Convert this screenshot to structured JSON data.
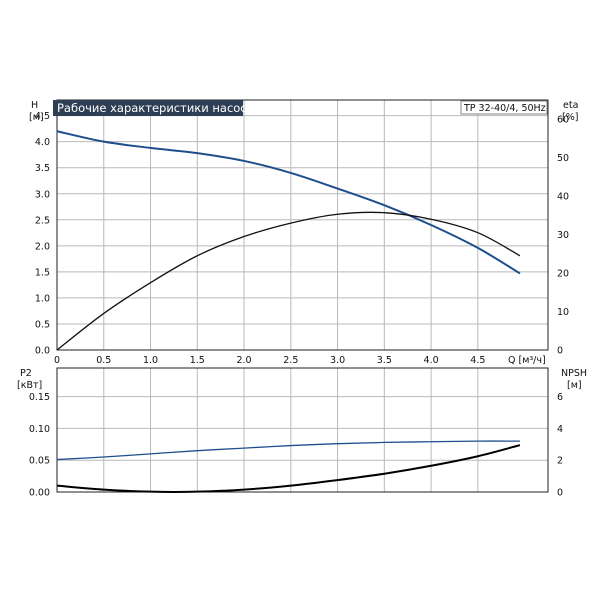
{
  "chart_data": [
    {
      "type": "line",
      "title": "Рабочие характеристики насоса",
      "model": "TP 32-40/4, 50Hz",
      "xlabel": "Q [м³/ч]",
      "xlim": [
        0,
        5.25
      ],
      "x_ticks": [
        "0",
        "0.5",
        "1.0",
        "1.5",
        "2.0",
        "2.5",
        "3.0",
        "3.5",
        "4.0",
        "4.5"
      ],
      "left_axis": {
        "label": "H",
        "unit": "[м]",
        "ylim": [
          0,
          4.8
        ],
        "ticks": [
          "0.0",
          "0.5",
          "1.0",
          "1.5",
          "2.0",
          "2.5",
          "3.0",
          "3.5",
          "4.0",
          "4.5"
        ]
      },
      "right_axis": {
        "label": "eta",
        "unit": "[%]",
        "ylim": [
          0,
          65
        ],
        "ticks": [
          "0",
          "10",
          "20",
          "30",
          "40",
          "50",
          "60"
        ]
      },
      "grid": true,
      "series": [
        {
          "color": "#1f4e8c",
          "axis": "left",
          "x": [
            0,
            0.5,
            1.0,
            1.5,
            2.0,
            2.5,
            3.0,
            3.5,
            4.0,
            4.5,
            4.95
          ],
          "values": [
            4.2,
            4.0,
            3.88,
            3.78,
            3.63,
            3.4,
            3.1,
            2.78,
            2.4,
            1.96,
            1.47
          ]
        },
        {
          "color": "#111111",
          "axis": "right",
          "x": [
            0,
            0.5,
            1.0,
            1.5,
            2.0,
            2.5,
            3.0,
            3.5,
            4.0,
            4.5,
            4.95
          ],
          "values": [
            0,
            9.5,
            17.5,
            24.5,
            29.5,
            33,
            35.3,
            35.7,
            34,
            30.5,
            24.5
          ]
        }
      ]
    },
    {
      "type": "line",
      "xlim": [
        0,
        5.25
      ],
      "left_axis": {
        "label": "P2",
        "unit": "[кВт]",
        "ylim": [
          0,
          0.195
        ],
        "ticks": [
          "0.00",
          "0.05",
          "0.10",
          "0.15"
        ]
      },
      "right_axis": {
        "label": "NPSH",
        "unit": "[м]",
        "ylim": [
          0,
          7.8
        ],
        "ticks": [
          "0",
          "2",
          "4",
          "6"
        ]
      },
      "grid": true,
      "series": [
        {
          "color": "#1f4e8c",
          "axis": "left",
          "x": [
            0,
            0.5,
            1.0,
            1.5,
            2.0,
            2.5,
            3.0,
            3.5,
            4.0,
            4.5,
            4.95
          ],
          "values": [
            0.051,
            0.055,
            0.06,
            0.065,
            0.069,
            0.073,
            0.076,
            0.078,
            0.079,
            0.08,
            0.08
          ]
        },
        {
          "color": "#000000",
          "axis": "right",
          "x": [
            0,
            0.5,
            1.0,
            1.5,
            2.0,
            2.5,
            3.0,
            3.5,
            4.0,
            4.5,
            4.95
          ],
          "values": [
            0.4,
            0.15,
            0.02,
            0.02,
            0.15,
            0.4,
            0.75,
            1.15,
            1.65,
            2.25,
            2.95
          ]
        }
      ]
    }
  ]
}
